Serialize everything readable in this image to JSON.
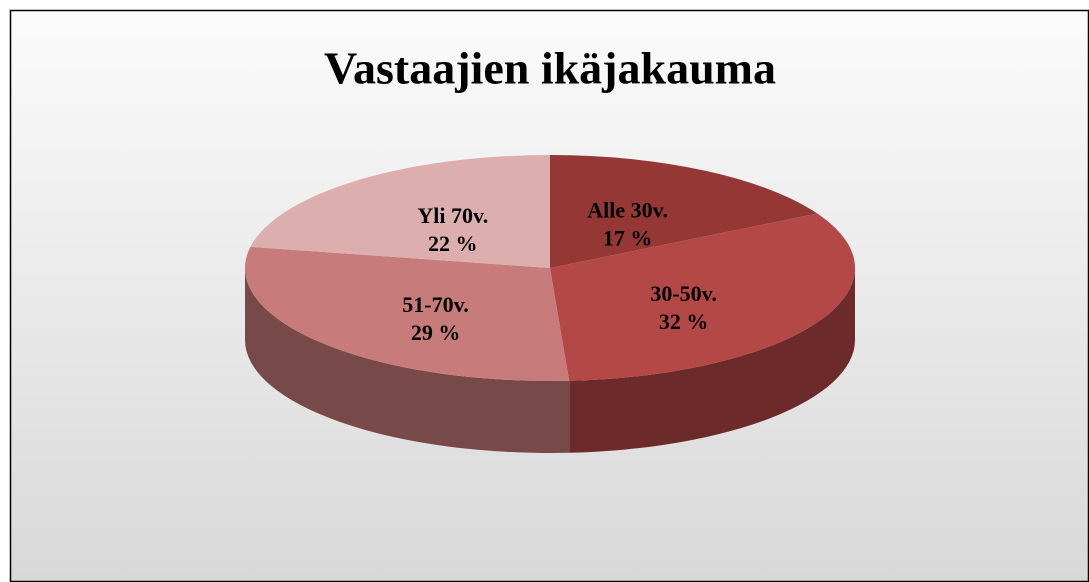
{
  "chart_data": {
    "type": "pie",
    "title": "Vastaajien ikäjakauma",
    "categories": [
      "Alle 30v.",
      "30-50v.",
      "51-70v.",
      "Yli 70v."
    ],
    "values": [
      17,
      32,
      29,
      22
    ],
    "value_labels": [
      "17 %",
      "32 %",
      "29 %",
      "22 %"
    ],
    "colors": [
      "#953735",
      "#b44846",
      "#c77b7a",
      "#dcafae"
    ]
  }
}
